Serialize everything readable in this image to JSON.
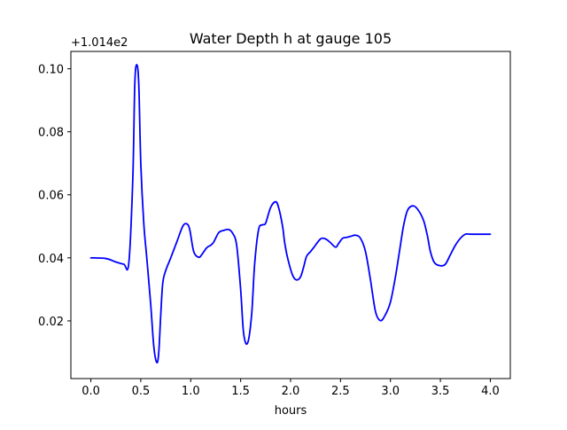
{
  "chart_data": {
    "type": "line",
    "title": "Water Depth h at gauge 105",
    "xlabel": "hours",
    "ylabel": "",
    "y_offset_label": "+1.014e2",
    "xlim": [
      -0.2,
      4.2
    ],
    "ylim": [
      0.0017,
      0.1055
    ],
    "x_ticks": [
      0.0,
      0.5,
      1.0,
      1.5,
      2.0,
      2.5,
      3.0,
      3.5,
      4.0
    ],
    "x_tick_labels": [
      "0.0",
      "0.5",
      "1.0",
      "1.5",
      "2.0",
      "2.5",
      "3.0",
      "3.5",
      "4.0"
    ],
    "y_ticks": [
      0.02,
      0.04,
      0.06,
      0.08,
      0.1
    ],
    "y_tick_labels": [
      "0.02",
      "0.04",
      "0.06",
      "0.08",
      "0.10"
    ],
    "grid": false,
    "series": [
      {
        "color": "#0000ff",
        "x": [
          0.0,
          0.15,
          0.25,
          0.33,
          0.38,
          0.42,
          0.44,
          0.46,
          0.48,
          0.5,
          0.53,
          0.56,
          0.6,
          0.63,
          0.66,
          0.68,
          0.7,
          0.72,
          0.75,
          0.8,
          0.86,
          0.92,
          0.96,
          0.99,
          1.03,
          1.08,
          1.11,
          1.16,
          1.2,
          1.23,
          1.28,
          1.33,
          1.38,
          1.42,
          1.46,
          1.5,
          1.53,
          1.57,
          1.61,
          1.64,
          1.68,
          1.72,
          1.75,
          1.8,
          1.85,
          1.88,
          1.92,
          1.94,
          1.97,
          2.02,
          2.06,
          2.1,
          2.13,
          2.16,
          2.2,
          2.23,
          2.3,
          2.35,
          2.4,
          2.45,
          2.48,
          2.52,
          2.56,
          2.6,
          2.65,
          2.7,
          2.75,
          2.8,
          2.85,
          2.9,
          2.95,
          3.0,
          3.05,
          3.09,
          3.13,
          3.17,
          3.22,
          3.27,
          3.33,
          3.37,
          3.4,
          3.44,
          3.5,
          3.55,
          3.6,
          3.65,
          3.7,
          3.75,
          3.8,
          3.85,
          3.9,
          3.95,
          4.0
        ],
        "y": [
          0.04,
          0.0398,
          0.0387,
          0.038,
          0.0383,
          0.065,
          0.095,
          0.1013,
          0.095,
          0.07,
          0.051,
          0.04,
          0.025,
          0.012,
          0.0068,
          0.01,
          0.022,
          0.032,
          0.036,
          0.04,
          0.045,
          0.05,
          0.0508,
          0.049,
          0.042,
          0.0402,
          0.041,
          0.0432,
          0.044,
          0.045,
          0.048,
          0.0487,
          0.049,
          0.0478,
          0.044,
          0.03,
          0.016,
          0.013,
          0.022,
          0.038,
          0.049,
          0.0505,
          0.051,
          0.056,
          0.0578,
          0.056,
          0.05,
          0.045,
          0.04,
          0.0345,
          0.033,
          0.034,
          0.037,
          0.0405,
          0.042,
          0.0432,
          0.046,
          0.046,
          0.0448,
          0.0434,
          0.0445,
          0.0462,
          0.0465,
          0.0468,
          0.0472,
          0.0462,
          0.042,
          0.033,
          0.023,
          0.0201,
          0.022,
          0.026,
          0.034,
          0.042,
          0.05,
          0.055,
          0.0565,
          0.0555,
          0.052,
          0.047,
          0.042,
          0.0385,
          0.0375,
          0.038,
          0.041,
          0.044,
          0.0462,
          0.0475,
          0.0475,
          0.0475,
          0.0475,
          0.0475,
          0.0475
        ],
        "name": ""
      }
    ]
  }
}
